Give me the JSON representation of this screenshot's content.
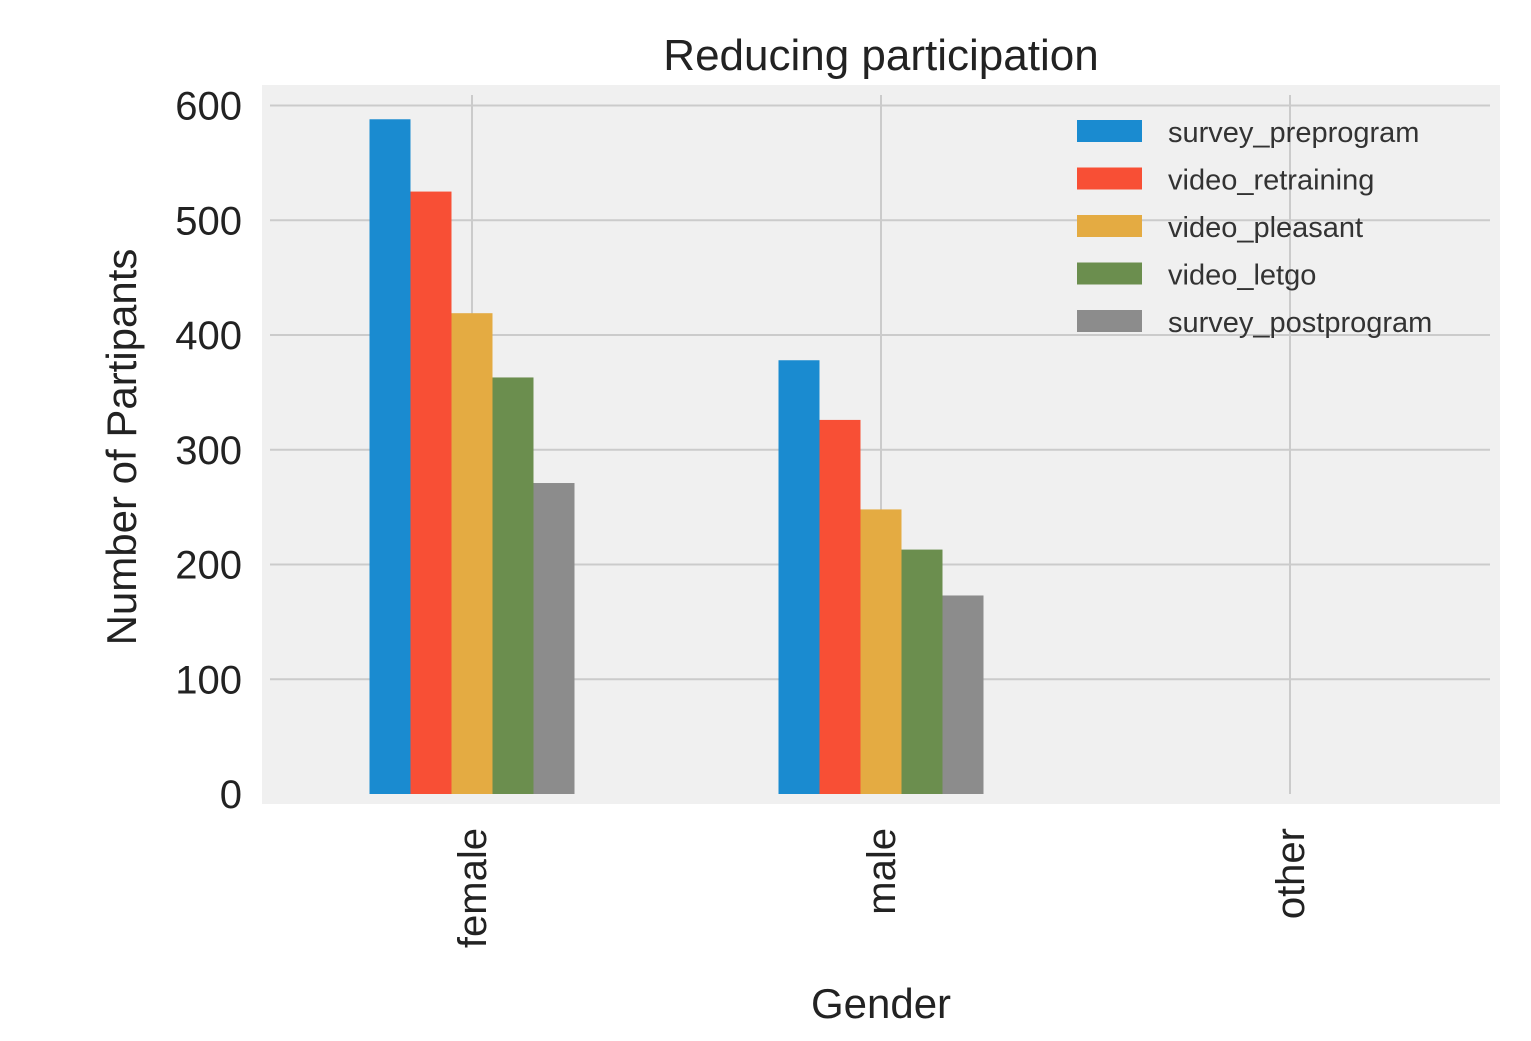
{
  "chart_data": {
    "type": "bar",
    "title": "Reducing participation",
    "xlabel": "Gender",
    "ylabel": "Number of Partipants",
    "categories": [
      "female",
      "male",
      "other"
    ],
    "ylim": [
      0,
      620
    ],
    "yticks": [
      0,
      100,
      200,
      300,
      400,
      500,
      600
    ],
    "grid": true,
    "legend_position": "top-right",
    "series": [
      {
        "name": "survey_preprogram",
        "color": "#1a8bd0",
        "values": [
          588,
          378,
          0
        ]
      },
      {
        "name": "video_retraining",
        "color": "#f84f35",
        "values": [
          525,
          326,
          0
        ]
      },
      {
        "name": "video_pleasant",
        "color": "#e4ab42",
        "values": [
          419,
          248,
          0
        ]
      },
      {
        "name": "video_letgo",
        "color": "#6b8e4e",
        "values": [
          363,
          213,
          0
        ]
      },
      {
        "name": "survey_postprogram",
        "color": "#8c8c8c",
        "values": [
          271,
          173,
          0
        ]
      }
    ]
  }
}
